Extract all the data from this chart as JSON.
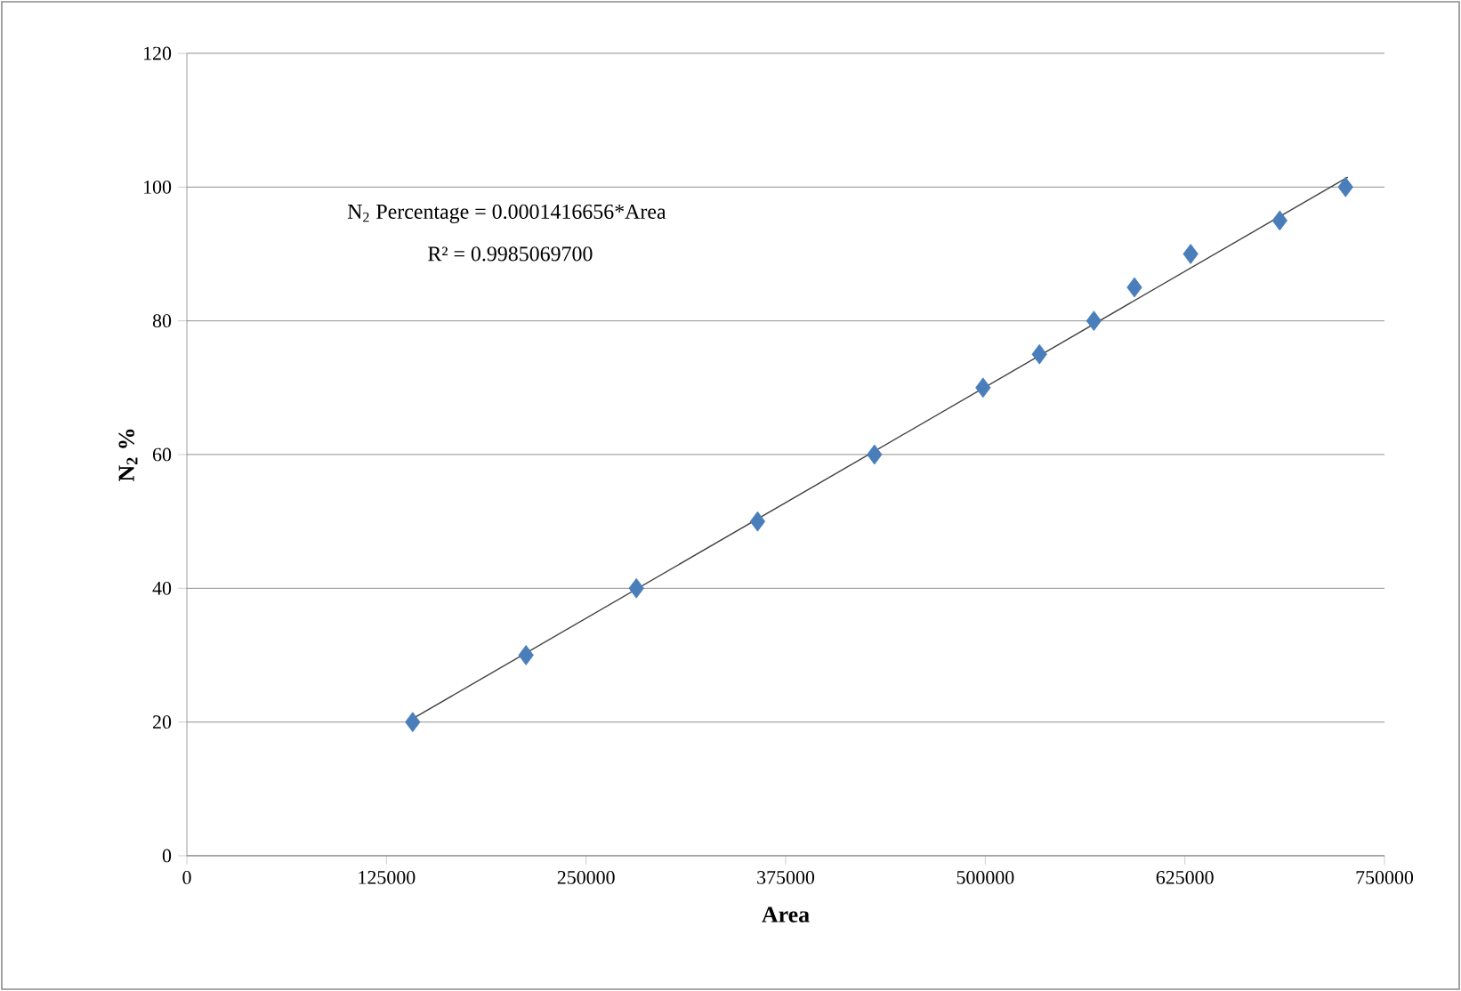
{
  "chart_data": {
    "type": "scatter",
    "xlabel": "Area",
    "ylabel": "N$_{2}$ %",
    "series": [
      {
        "color": "#4a7ebb",
        "marker": "diamond",
        "x": [
          141400,
          212400,
          281500,
          357400,
          430600,
          498600,
          533900,
          568000,
          593400,
          628600,
          684400,
          725600
        ],
        "values": [
          20,
          30,
          40,
          50,
          60,
          70,
          75,
          80,
          85,
          90,
          95,
          100
        ]
      },
      {
        "type": "line",
        "color": "#404040",
        "marker": "none",
        "line_style": "solid",
        "x": [
          141400,
          727000
        ],
        "values": [
          20.5,
          101.5
        ]
      }
    ],
    "annotations": [
      "N$_{2}$ Percentage = 0.0001416656*Area",
      "R² = 0.9985069700"
    ],
    "xlim": [
      0,
      750000
    ],
    "ylim": [
      0,
      120
    ],
    "xticks": [
      0,
      125000,
      250000,
      375000,
      500000,
      625000,
      750000
    ],
    "yticks": [
      0,
      20,
      40,
      60,
      80,
      100,
      120
    ],
    "grid": "y"
  }
}
